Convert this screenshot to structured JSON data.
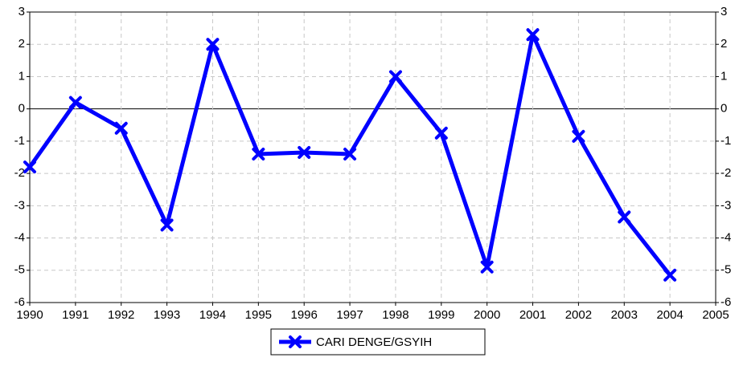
{
  "chart_data": {
    "type": "line",
    "x": [
      1990,
      1991,
      1992,
      1993,
      1994,
      1995,
      1996,
      1997,
      1998,
      1999,
      2000,
      2001,
      2002,
      2003,
      2004
    ],
    "series": [
      {
        "name": "CARI DENGE/GSYIH",
        "color": "#0000ff",
        "values": [
          -1.8,
          0.2,
          -0.6,
          -3.6,
          2.0,
          -1.4,
          -1.35,
          -1.4,
          1.0,
          -0.75,
          -4.9,
          2.3,
          -0.85,
          -3.35,
          -5.15
        ]
      }
    ],
    "xlim": [
      1990,
      2005
    ],
    "xticks": [
      1990,
      1991,
      1992,
      1993,
      1994,
      1995,
      1996,
      1997,
      1998,
      1999,
      2000,
      2001,
      2002,
      2003,
      2004,
      2005
    ],
    "ylim": [
      -6,
      3
    ],
    "yticks": [
      -6,
      -5,
      -4,
      -3,
      -2,
      -1,
      0,
      1,
      2,
      3
    ],
    "y2lim": [
      -6,
      3
    ],
    "y2ticks": [
      -6,
      -5,
      -4,
      -3,
      -2,
      -1,
      0,
      1,
      2,
      3
    ],
    "grid": true,
    "legend": "bottom"
  }
}
